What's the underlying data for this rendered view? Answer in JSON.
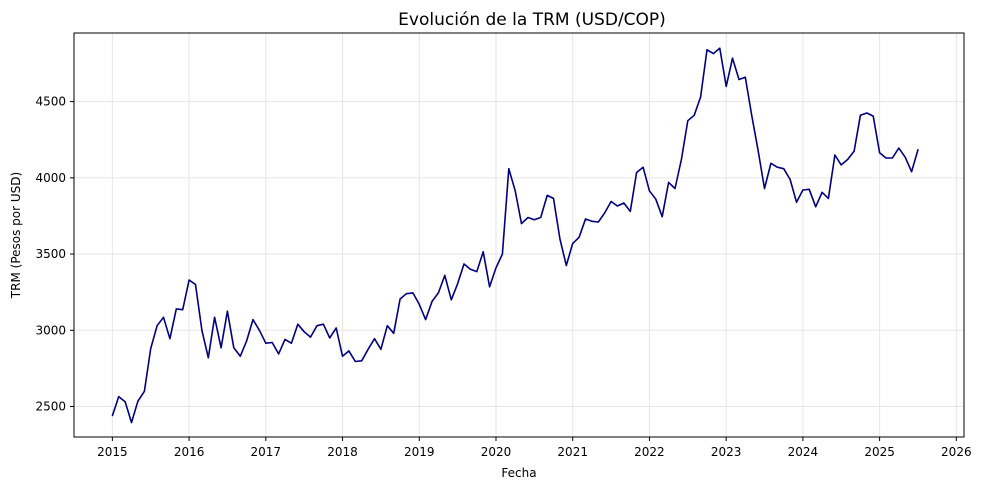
{
  "chart_data": {
    "type": "line",
    "title": "Evolución de la TRM (USD/COP)",
    "xlabel": "Fecha",
    "ylabel": "TRM (Pesos por USD)",
    "grid": true,
    "xlim": [
      2014.5,
      2026.1
    ],
    "ylim": [
      2300,
      4950
    ],
    "x_ticks": [
      "2015",
      "2016",
      "2017",
      "2018",
      "2019",
      "2020",
      "2021",
      "2022",
      "2023",
      "2024",
      "2025",
      "2026"
    ],
    "y_ticks": [
      "2500",
      "3000",
      "3500",
      "4000",
      "4500"
    ],
    "colors": {
      "line": "#000080",
      "grid": "#e6e6e6",
      "axis": "#000000"
    },
    "series": [
      {
        "x": [
          2015.0,
          2015.083,
          2015.167,
          2015.25,
          2015.333,
          2015.417,
          2015.5,
          2015.583,
          2015.667,
          2015.75,
          2015.833,
          2015.917,
          2016.0,
          2016.083,
          2016.167,
          2016.25,
          2016.333,
          2016.417,
          2016.5,
          2016.583,
          2016.667,
          2016.75,
          2016.833,
          2016.917,
          2017.0,
          2017.083,
          2017.167,
          2017.25,
          2017.333,
          2017.417,
          2017.5,
          2017.583,
          2017.667,
          2017.75,
          2017.833,
          2017.917,
          2018.0,
          2018.083,
          2018.167,
          2018.25,
          2018.333,
          2018.417,
          2018.5,
          2018.583,
          2018.667,
          2018.75,
          2018.833,
          2018.917,
          2019.0,
          2019.083,
          2019.167,
          2019.25,
          2019.333,
          2019.417,
          2019.5,
          2019.583,
          2019.667,
          2019.75,
          2019.833,
          2019.917,
          2020.0,
          2020.083,
          2020.167,
          2020.25,
          2020.333,
          2020.417,
          2020.5,
          2020.583,
          2020.667,
          2020.75,
          2020.833,
          2020.917,
          2021.0,
          2021.083,
          2021.167,
          2021.25,
          2021.333,
          2021.417,
          2021.5,
          2021.583,
          2021.667,
          2021.75,
          2021.833,
          2021.917,
          2022.0,
          2022.083,
          2022.167,
          2022.25,
          2022.333,
          2022.417,
          2022.5,
          2022.583,
          2022.667,
          2022.75,
          2022.833,
          2022.917,
          2023.0,
          2023.083,
          2023.167,
          2023.25,
          2023.333,
          2023.417,
          2023.5,
          2023.583,
          2023.667,
          2023.75,
          2023.833,
          2023.917,
          2024.0,
          2024.083,
          2024.167,
          2024.25,
          2024.333,
          2024.417,
          2024.5,
          2024.583,
          2024.667,
          2024.75,
          2024.833,
          2024.917,
          2025.0,
          2025.083,
          2025.167,
          2025.25,
          2025.333,
          2025.417,
          2025.5
        ],
        "values": [
          2440,
          2565,
          2530,
          2395,
          2535,
          2600,
          2880,
          3030,
          3085,
          2945,
          3140,
          3135,
          3330,
          3300,
          3000,
          2820,
          3085,
          2885,
          3125,
          2885,
          2830,
          2930,
          3070,
          3000,
          2915,
          2920,
          2845,
          2940,
          2915,
          3040,
          2990,
          2955,
          3030,
          3040,
          2950,
          3015,
          2830,
          2865,
          2795,
          2800,
          2875,
          2945,
          2875,
          3030,
          2980,
          3205,
          3240,
          3245,
          3170,
          3070,
          3190,
          3245,
          3360,
          3200,
          3305,
          3435,
          3400,
          3385,
          3515,
          3285,
          3410,
          3500,
          4060,
          3915,
          3700,
          3740,
          3725,
          3740,
          3885,
          3865,
          3600,
          3425,
          3570,
          3610,
          3730,
          3715,
          3710,
          3770,
          3845,
          3815,
          3835,
          3780,
          4035,
          4070,
          3915,
          3860,
          3745,
          3970,
          3930,
          4120,
          4375,
          4410,
          4530,
          4840,
          4815,
          4850,
          4600,
          4785,
          4645,
          4660,
          4410,
          4180,
          3930,
          4095,
          4070,
          4060,
          3990,
          3840,
          3920,
          3925,
          3810,
          3905,
          3865,
          4150,
          4085,
          4120,
          4175,
          4410,
          4425,
          4405,
          4165,
          4130,
          4130,
          4195,
          4135,
          4040,
          4185
        ]
      }
    ]
  }
}
